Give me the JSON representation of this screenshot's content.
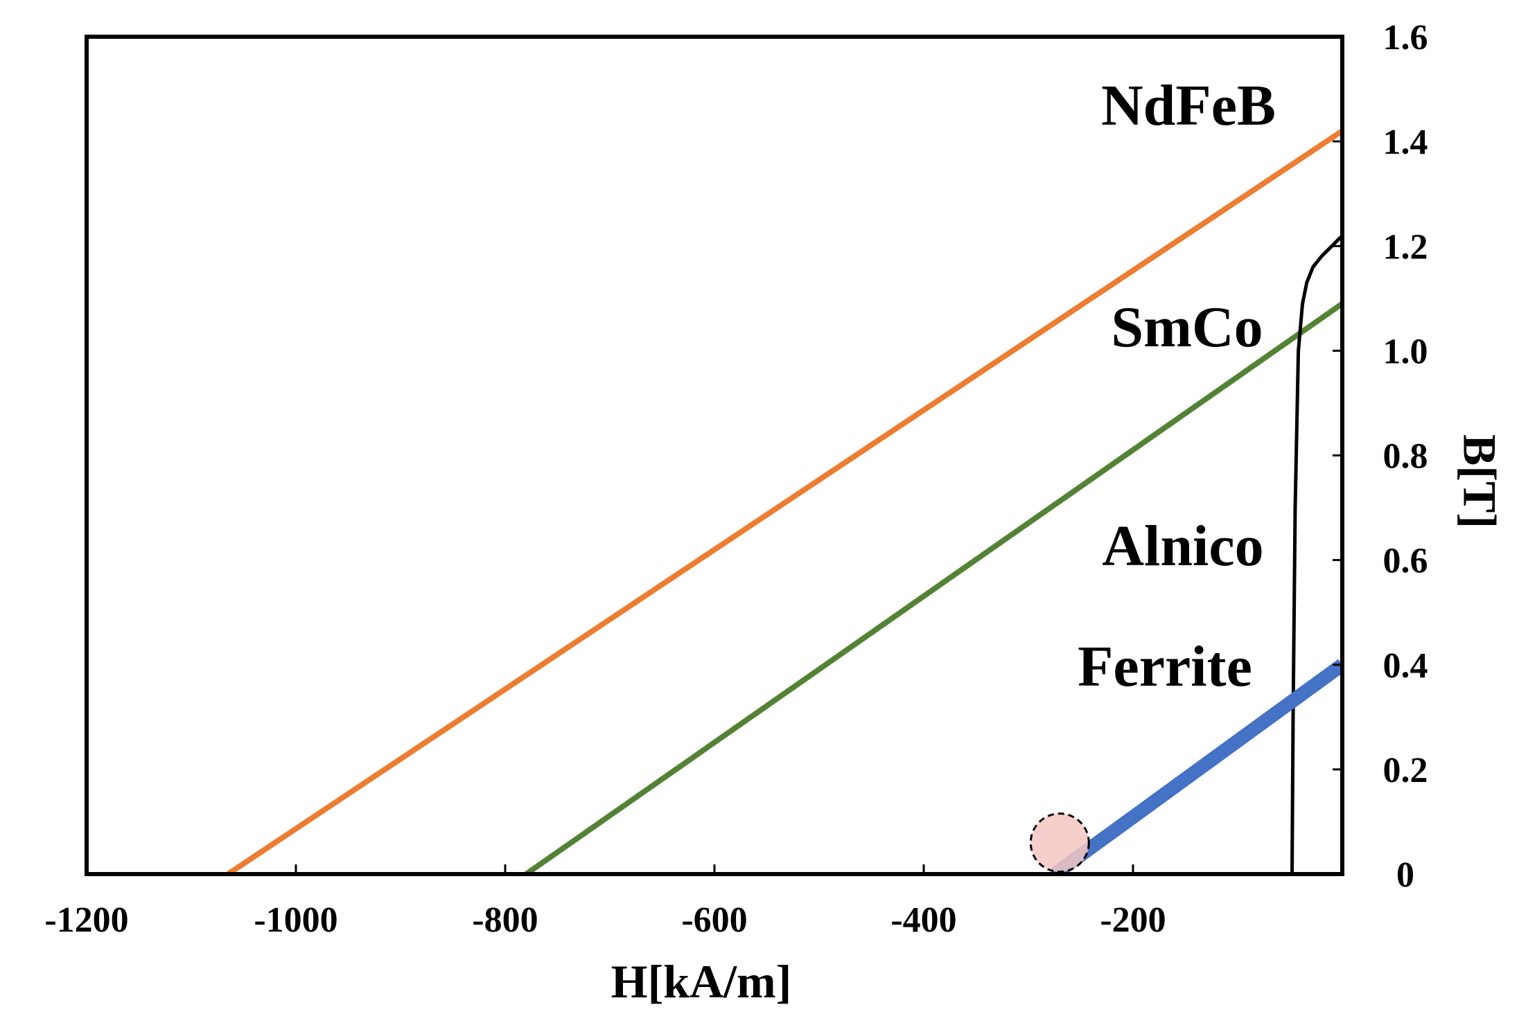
{
  "chart_data": {
    "type": "line",
    "title": "",
    "xlabel": "H[kA/m]",
    "ylabel": "B[T]",
    "xlim": [
      -1200,
      0
    ],
    "ylim": [
      0,
      1.6
    ],
    "x_ticks": [
      -1200,
      -1000,
      -800,
      -600,
      -400,
      -200
    ],
    "x_tick_labels": [
      "-1200",
      "-1000",
      "-800",
      "-600",
      "-400",
      "-200"
    ],
    "y_ticks": [
      0,
      0.2,
      0.4,
      0.6,
      0.8,
      1.0,
      1.2,
      1.4,
      1.6
    ],
    "y_tick_labels": [
      "0",
      "0.2",
      "0.4",
      "0.6",
      "0.8",
      "1.0",
      "1.2",
      "1.4",
      "1.6"
    ],
    "grid": false,
    "y_axis_side": "right",
    "series": [
      {
        "name": "NdFeB",
        "color": "#ED7D31",
        "x": [
          -1065,
          0
        ],
        "y": [
          0,
          1.42
        ]
      },
      {
        "name": "SmCo",
        "color": "#548235",
        "x": [
          -780,
          0
        ],
        "y": [
          0,
          1.09
        ]
      },
      {
        "name": "Alnico",
        "color": "#000000",
        "x": [
          -48,
          -47,
          -45,
          -42,
          -38,
          -34,
          -28,
          -20,
          -10,
          0
        ],
        "y": [
          0,
          0.3,
          0.7,
          1.0,
          1.09,
          1.13,
          1.16,
          1.18,
          1.2,
          1.22
        ]
      },
      {
        "name": "Ferrite",
        "color": "#4472C4",
        "x": [
          -275,
          0
        ],
        "y": [
          0,
          0.4
        ]
      }
    ],
    "annotations": [
      {
        "type": "circle",
        "x": -270,
        "y": 0.06,
        "fill": "#F4C7C3",
        "stroke": "#000000",
        "stroke_style": "dashed"
      }
    ]
  }
}
